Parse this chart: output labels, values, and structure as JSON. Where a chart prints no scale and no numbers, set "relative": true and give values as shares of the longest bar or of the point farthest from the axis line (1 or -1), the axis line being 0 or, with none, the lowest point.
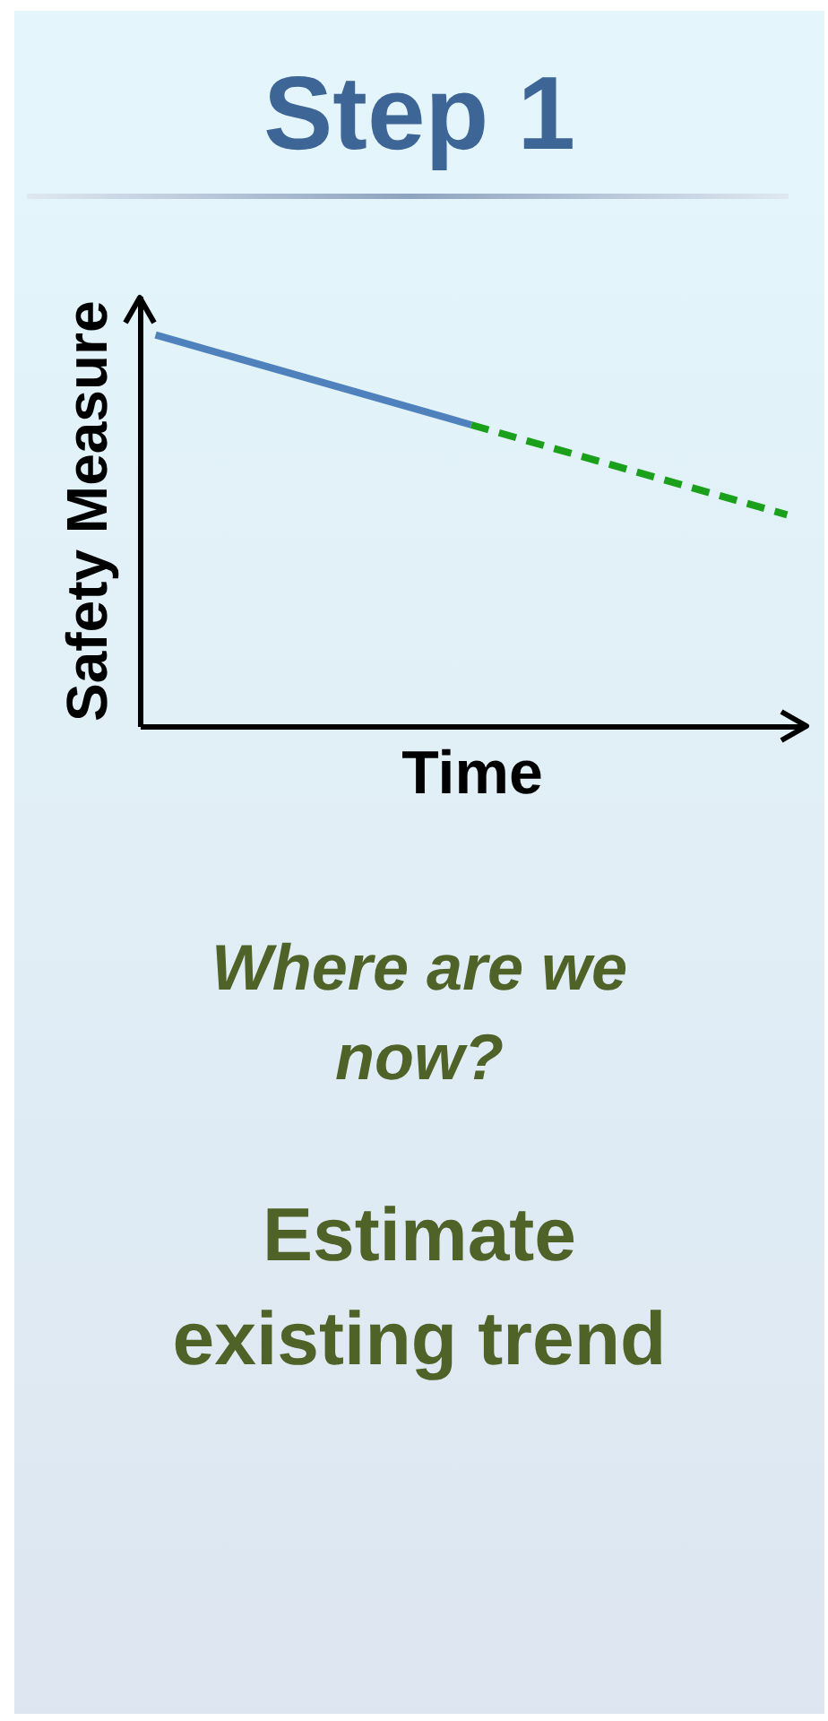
{
  "chart_data": {
    "type": "line",
    "title": "Step 1",
    "xlabel": "Time",
    "ylabel": "Safety Measure",
    "relative": true,
    "categories": [
      null,
      null,
      null
    ],
    "series": [
      {
        "color": "#4f81bd",
        "values": [
          1,
          0.77,
          null
        ],
        "line_style": "solid"
      },
      {
        "color": "#1aa01a",
        "values": [
          null,
          0.77,
          0.54
        ],
        "line_style": "dashed"
      }
    ],
    "annotations": [
      "Where are we now?",
      "Estimate existing trend"
    ]
  }
}
